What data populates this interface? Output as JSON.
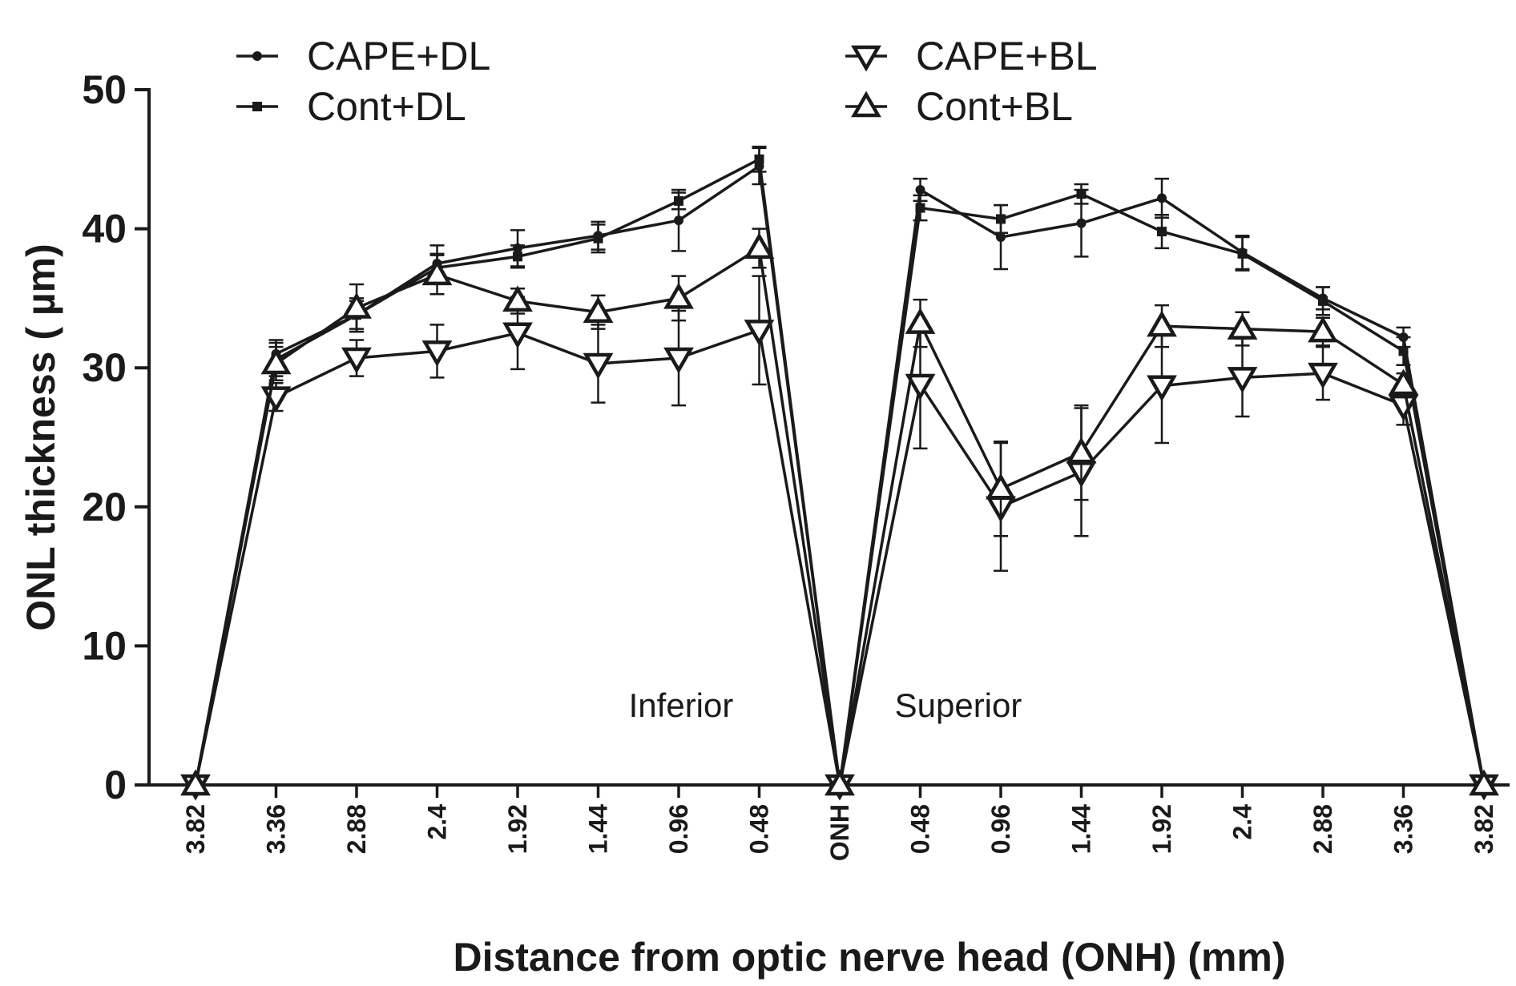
{
  "chart_data": {
    "type": "line",
    "xlabel": "Distance from optic nerve head (ONH) (mm)",
    "ylabel": "ONL thickness ( µm)",
    "ylim": [
      0,
      50
    ],
    "yticks": [
      "0",
      "10",
      "20",
      "30",
      "40",
      "50"
    ],
    "grid": false,
    "legend_position": "top",
    "categories": [
      "3.82",
      "3.36",
      "2.88",
      "2.4",
      "1.92",
      "1.44",
      "0.96",
      "0.48",
      "ONH",
      "0.48",
      "0.96",
      "1.44",
      "1.92",
      "2.4",
      "2.88",
      "3.36",
      "3.82"
    ],
    "annotations": [
      "Inferior",
      "Superior"
    ],
    "series": [
      {
        "name": "CAPE+DL",
        "marker": "circle",
        "values": [
          0,
          31.0,
          33.8,
          37.5,
          38.6,
          39.5,
          40.6,
          44.5,
          0,
          42.8,
          39.4,
          40.4,
          42.2,
          38.3,
          35.0,
          32.2,
          0
        ],
        "errors": [
          0,
          1.0,
          1.2,
          1.3,
          1.3,
          1.0,
          2.2,
          1.3,
          0,
          0.8,
          2.3,
          2.4,
          1.4,
          1.2,
          0.8,
          0.7,
          0
        ]
      },
      {
        "name": "Cont+DL",
        "marker": "square",
        "values": [
          0,
          30.6,
          33.8,
          37.2,
          38.0,
          39.3,
          42.0,
          45.0,
          0,
          41.5,
          40.7,
          42.5,
          39.8,
          38.2,
          34.8,
          31.2,
          0
        ],
        "errors": [
          0,
          1.2,
          1.0,
          1.0,
          0.8,
          1.0,
          0.6,
          0.9,
          0,
          0.9,
          1.0,
          0.7,
          1.2,
          1.2,
          1.0,
          1.0,
          0
        ]
      },
      {
        "name": "CAPE+BL",
        "marker": "triangle-down",
        "values": [
          0,
          27.9,
          30.7,
          31.2,
          32.5,
          30.3,
          30.7,
          32.7,
          0,
          28.8,
          20.0,
          22.5,
          28.7,
          29.3,
          29.6,
          27.3,
          0
        ],
        "errors": [
          0,
          1.0,
          1.3,
          1.9,
          2.6,
          2.8,
          3.4,
          3.9,
          0,
          4.6,
          4.6,
          4.6,
          4.1,
          2.8,
          1.9,
          1.4,
          0
        ]
      },
      {
        "name": "Cont+BL",
        "marker": "triangle-up",
        "values": [
          0,
          30.3,
          34.3,
          36.7,
          34.8,
          34.0,
          35.0,
          38.6,
          0,
          33.2,
          21.3,
          23.9,
          33.0,
          32.8,
          32.6,
          28.8,
          0
        ],
        "errors": [
          0,
          1.2,
          1.7,
          1.4,
          0.9,
          1.2,
          1.6,
          1.4,
          0,
          1.7,
          3.4,
          3.4,
          1.5,
          1.2,
          1.0,
          0.8,
          0
        ]
      }
    ]
  }
}
